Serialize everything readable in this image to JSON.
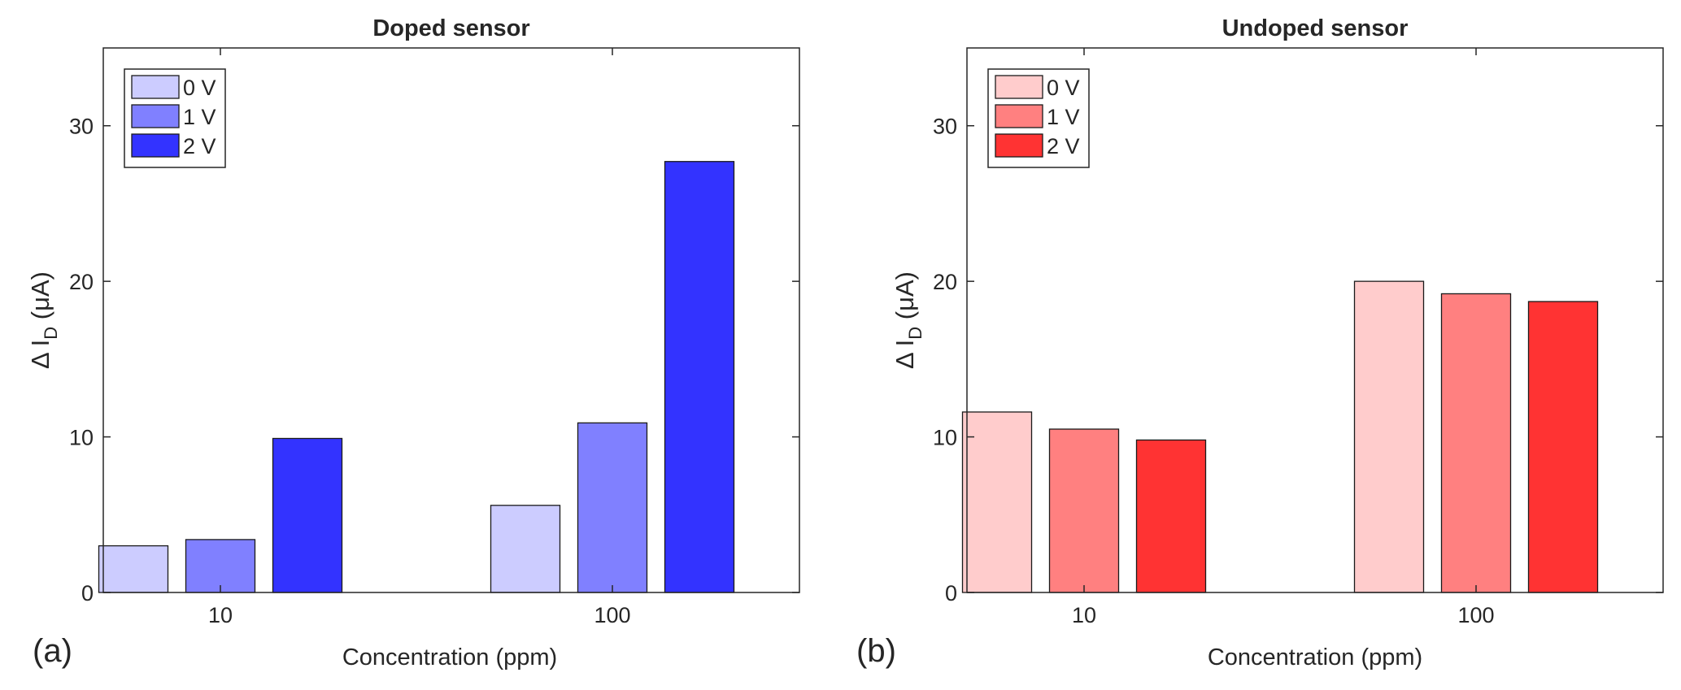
{
  "chart_data": [
    {
      "type": "bar",
      "panel_label": "(a)",
      "title": "Doped sensor",
      "xlabel": "Concentration (ppm)",
      "ylabel_prefix": "Δ I",
      "ylabel_subscript": "D",
      "ylabel_suffix": " (μA)",
      "ylim": [
        0,
        35
      ],
      "yticks": [
        0,
        10,
        20,
        30
      ],
      "categories": [
        "10",
        "100"
      ],
      "series": [
        {
          "name": "0 V",
          "color": "#ccccff",
          "values": [
            3.0,
            5.6
          ]
        },
        {
          "name": "1 V",
          "color": "#8080ff",
          "values": [
            3.4,
            10.9
          ]
        },
        {
          "name": "2 V",
          "color": "#3333ff",
          "values": [
            9.9,
            27.7
          ]
        }
      ],
      "legend": "top-left",
      "grid": false
    },
    {
      "type": "bar",
      "panel_label": "(b)",
      "title": "Undoped sensor",
      "xlabel": "Concentration (ppm)",
      "ylabel_prefix": "Δ I",
      "ylabel_subscript": "D",
      "ylabel_suffix": " (μA)",
      "ylim": [
        0,
        35
      ],
      "yticks": [
        0,
        10,
        20,
        30
      ],
      "categories": [
        "10",
        "100"
      ],
      "series": [
        {
          "name": "0 V",
          "color": "#ffcccc",
          "values": [
            11.6,
            20.0
          ]
        },
        {
          "name": "1 V",
          "color": "#ff8080",
          "values": [
            10.5,
            19.2
          ]
        },
        {
          "name": "2 V",
          "color": "#ff3333",
          "values": [
            9.8,
            18.7
          ]
        }
      ],
      "legend": "top-left",
      "grid": false
    }
  ]
}
